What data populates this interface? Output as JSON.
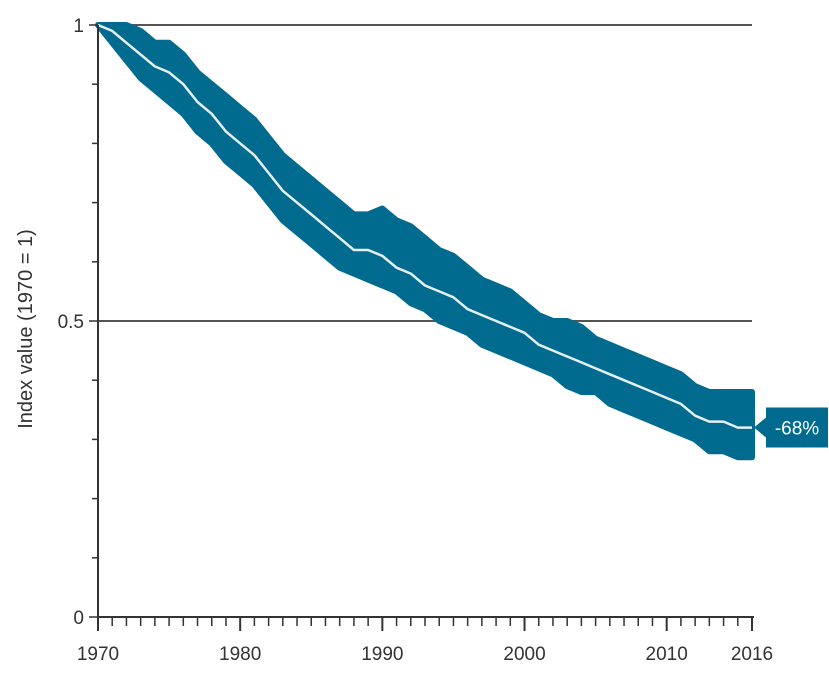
{
  "chart_data": {
    "type": "area",
    "title": "",
    "xlabel": "",
    "ylabel": "Index value (1970 = 1)",
    "xlim": [
      1970,
      2016
    ],
    "ylim": [
      0,
      1
    ],
    "x_ticks": [
      1970,
      1980,
      1990,
      2000,
      2010,
      2016
    ],
    "y_ticks": [
      0,
      0.5,
      1
    ],
    "y_tick_labels": [
      "0",
      "0.5",
      "1"
    ],
    "gridlines_y": [
      0.5,
      1
    ],
    "x": [
      1970,
      1971,
      1972,
      1973,
      1974,
      1975,
      1976,
      1977,
      1978,
      1979,
      1980,
      1981,
      1982,
      1983,
      1984,
      1985,
      1986,
      1987,
      1988,
      1989,
      1990,
      1991,
      1992,
      1993,
      1994,
      1995,
      1996,
      1997,
      1998,
      1999,
      2000,
      2001,
      2002,
      2003,
      2004,
      2005,
      2006,
      2007,
      2008,
      2009,
      2010,
      2011,
      2012,
      2013,
      2014,
      2015,
      2016
    ],
    "series": [
      {
        "values": [
          1.0,
          0.99,
          0.97,
          0.95,
          0.93,
          0.92,
          0.9,
          0.87,
          0.85,
          0.82,
          0.8,
          0.78,
          0.75,
          0.72,
          0.7,
          0.68,
          0.66,
          0.64,
          0.62,
          0.62,
          0.61,
          0.59,
          0.58,
          0.56,
          0.55,
          0.54,
          0.52,
          0.51,
          0.5,
          0.49,
          0.48,
          0.46,
          0.45,
          0.44,
          0.43,
          0.42,
          0.41,
          0.4,
          0.39,
          0.38,
          0.37,
          0.36,
          0.34,
          0.33,
          0.33,
          0.32,
          0.32
        ],
        "lower": [
          1.0,
          0.97,
          0.94,
          0.91,
          0.89,
          0.87,
          0.85,
          0.82,
          0.8,
          0.77,
          0.75,
          0.73,
          0.7,
          0.67,
          0.65,
          0.63,
          0.61,
          0.59,
          0.58,
          0.57,
          0.56,
          0.55,
          0.53,
          0.52,
          0.5,
          0.49,
          0.48,
          0.46,
          0.45,
          0.44,
          0.43,
          0.42,
          0.41,
          0.39,
          0.38,
          0.38,
          0.36,
          0.35,
          0.34,
          0.33,
          0.32,
          0.31,
          0.3,
          0.28,
          0.28,
          0.27,
          0.27
        ],
        "upper": [
          1.0,
          1.0,
          1.0,
          0.99,
          0.97,
          0.97,
          0.95,
          0.92,
          0.9,
          0.88,
          0.86,
          0.84,
          0.81,
          0.78,
          0.76,
          0.74,
          0.72,
          0.7,
          0.68,
          0.68,
          0.69,
          0.67,
          0.66,
          0.64,
          0.62,
          0.61,
          0.59,
          0.57,
          0.56,
          0.55,
          0.53,
          0.51,
          0.5,
          0.5,
          0.49,
          0.47,
          0.46,
          0.45,
          0.44,
          0.43,
          0.42,
          0.41,
          0.39,
          0.38,
          0.38,
          0.38,
          0.38
        ]
      }
    ],
    "annotations": [
      {
        "x": 2016,
        "text": "-68%"
      }
    ],
    "colors": {
      "band": "#006b8f",
      "line": "#e6f0f3",
      "grid": "#555555",
      "axis": "#333333",
      "callout": "#006b8f"
    },
    "grid": true,
    "legend": "none"
  }
}
